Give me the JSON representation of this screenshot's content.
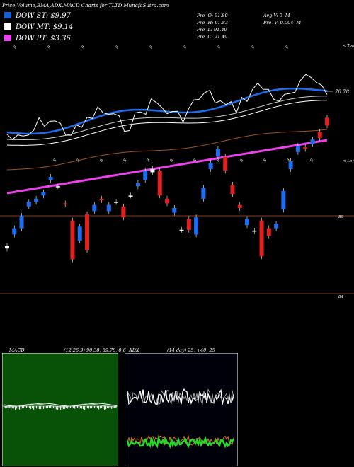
{
  "header": {
    "title": "Price,Volume,EMA,ADX,MACD Charts for TLTD MunafaSutra.com"
  },
  "legend": [
    {
      "label": "DOW ST: $9.97",
      "color": "#1560d8"
    },
    {
      "label": "DOW MT: $9.14",
      "color": "#ffffff"
    },
    {
      "label": "DOW PT: $3.36",
      "color": "#ee40ee"
    }
  ],
  "stats": {
    "col1": [
      "Pre  O: 91.80",
      "Pre  H: 91.83",
      "Pre  L: 91.40",
      "Pre  C: 91.49"
    ],
    "col2": [
      "Avg V: 0  M",
      "Pre  V: 0.004  M"
    ]
  },
  "chart_data": [
    {
      "type": "candlestick",
      "title": "",
      "right_labels": [
        "< Tops",
        "< Lows"
      ],
      "price_labels": [
        "78.78",
        "89",
        "84"
      ],
      "top_dates": [
        "8",
        "9",
        "9",
        "8",
        "8",
        "8",
        "8",
        "8",
        "9"
      ],
      "mid_dates": [
        "8",
        "8",
        "8",
        "8",
        "9",
        "8",
        "8",
        "8",
        "8",
        "8",
        "9",
        "9"
      ],
      "candles": [
        {
          "o": 86.9,
          "c": 87.05,
          "color": "white"
        },
        {
          "o": 87.8,
          "c": 88.2,
          "color": "blue"
        },
        {
          "o": 88.2,
          "c": 89.0,
          "color": "blue"
        },
        {
          "o": 89.6,
          "c": 89.9,
          "color": "blue"
        },
        {
          "o": 89.9,
          "c": 90.1,
          "color": "blue"
        },
        {
          "o": 90.3,
          "c": 90.5,
          "color": "blue"
        },
        {
          "o": 91.3,
          "c": 91.5,
          "color": "blue"
        },
        {
          "o": 90.9,
          "c": 90.9,
          "color": "white"
        },
        {
          "o": 89.8,
          "c": 89.75,
          "color": "red"
        },
        {
          "o": 88.7,
          "c": 86.2,
          "color": "red"
        },
        {
          "o": 87.4,
          "c": 88.3,
          "color": "blue"
        },
        {
          "o": 89.1,
          "c": 86.8,
          "color": "red"
        },
        {
          "o": 89.3,
          "c": 89.7,
          "color": "blue"
        },
        {
          "o": 90.1,
          "c": 90.0,
          "color": "red"
        },
        {
          "o": 89.7,
          "c": 89.3,
          "color": "blue"
        },
        {
          "o": 89.9,
          "c": 89.9,
          "color": "white"
        },
        {
          "o": 89.6,
          "c": 88.9,
          "color": "red"
        },
        {
          "o": 90.3,
          "c": 90.3,
          "color": "white"
        },
        {
          "o": 90.9,
          "c": 91.1,
          "color": "blue"
        },
        {
          "o": 91.3,
          "c": 91.9,
          "color": "blue"
        },
        {
          "o": 92.0,
          "c": 91.8,
          "color": "white"
        },
        {
          "o": 91.9,
          "c": 90.3,
          "color": "red"
        },
        {
          "o": 90.1,
          "c": 89.8,
          "color": "red"
        },
        {
          "o": 89.5,
          "c": 89.2,
          "color": "blue"
        },
        {
          "o": 88.1,
          "c": 88.1,
          "color": "white"
        },
        {
          "o": 88.1,
          "c": 88.8,
          "color": "red"
        },
        {
          "o": 87.8,
          "c": 88.9,
          "color": "blue"
        },
        {
          "o": 90.1,
          "c": 90.8,
          "color": "blue"
        },
        {
          "o": 92.0,
          "c": 92.4,
          "color": "blue"
        },
        {
          "o": 92.8,
          "c": 93.3,
          "color": "blue"
        },
        {
          "o": 92.8,
          "c": 91.9,
          "color": "red"
        },
        {
          "o": 91.0,
          "c": 90.4,
          "color": "red"
        },
        {
          "o": 89.7,
          "c": 89.5,
          "color": "red"
        },
        {
          "o": 88.8,
          "c": 88.4,
          "color": "blue"
        },
        {
          "o": 88.0,
          "c": 88.05,
          "color": "white"
        },
        {
          "o": 88.7,
          "c": 86.4,
          "color": "red"
        },
        {
          "o": 87.7,
          "c": 88.2,
          "color": "red"
        },
        {
          "o": 88.2,
          "c": 88.5,
          "color": "blue"
        },
        {
          "o": 89.4,
          "c": 90.6,
          "color": "blue"
        },
        {
          "o": 92.0,
          "c": 92.5,
          "color": "blue"
        },
        {
          "o": 93.1,
          "c": 93.5,
          "color": "blue"
        },
        {
          "o": 93.3,
          "c": 93.4,
          "color": "red"
        },
        {
          "o": 93.6,
          "c": 93.9,
          "color": "blue"
        },
        {
          "o": 94.0,
          "c": 94.4,
          "color": "red"
        },
        {
          "o": 94.8,
          "c": 95.3,
          "color": "red"
        }
      ]
    },
    {
      "type": "macd",
      "label": "MACD:",
      "params": "(12,26,9) 90.38, 89.78, 0.6"
    },
    {
      "type": "adx",
      "label": "ADX",
      "params": "(14 day) 25, +40, 25"
    }
  ]
}
